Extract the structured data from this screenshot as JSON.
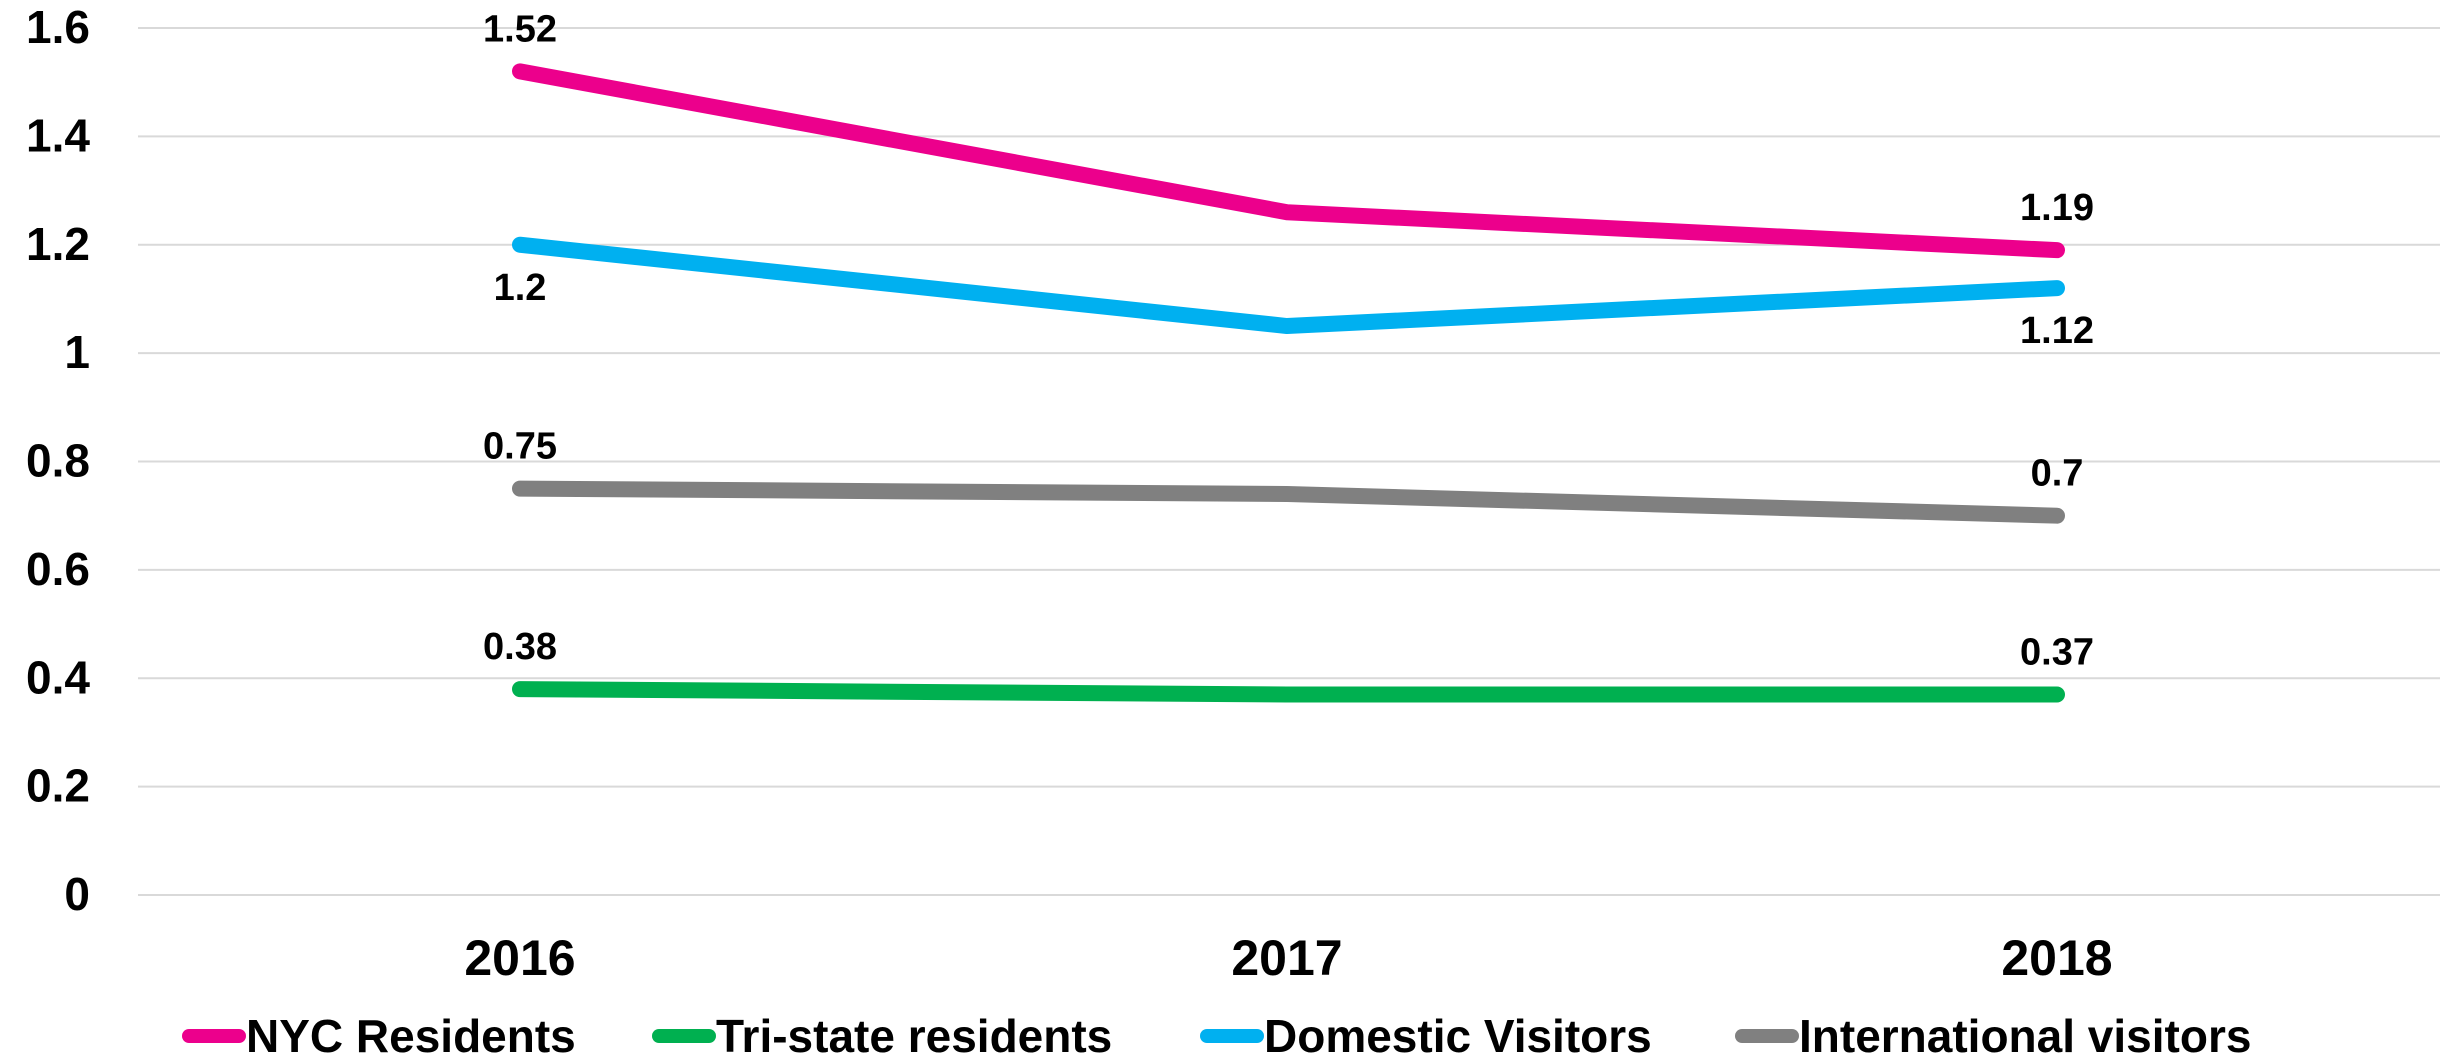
{
  "chart_data": {
    "type": "line",
    "categories": [
      "2016",
      "2017",
      "2018"
    ],
    "ylim": [
      0,
      1.6
    ],
    "yticks": [
      "0",
      "0.2",
      "0.4",
      "0.6",
      "0.8",
      "1",
      "1.2",
      "1.4",
      "1.6"
    ],
    "grid": true,
    "legend_position": "bottom",
    "series": [
      {
        "name": "NYC Residents",
        "color": "#EC008C",
        "values": [
          1.52,
          1.26,
          1.19
        ],
        "labels": [
          "1.52",
          "",
          "1.19"
        ]
      },
      {
        "name": "Tri-state residents",
        "color": "#00B050",
        "values": [
          0.38,
          0.37,
          0.37
        ],
        "labels": [
          "0.38",
          "",
          "0.37"
        ]
      },
      {
        "name": "Domestic Visitors",
        "color": "#00B0F0",
        "values": [
          1.2,
          1.05,
          1.12
        ],
        "labels": [
          "1.2",
          "",
          "1.12"
        ]
      },
      {
        "name": "International visitors",
        "color": "#808080",
        "values": [
          0.75,
          0.74,
          0.7
        ],
        "labels": [
          "0.75",
          "",
          "0.7"
        ]
      }
    ]
  }
}
